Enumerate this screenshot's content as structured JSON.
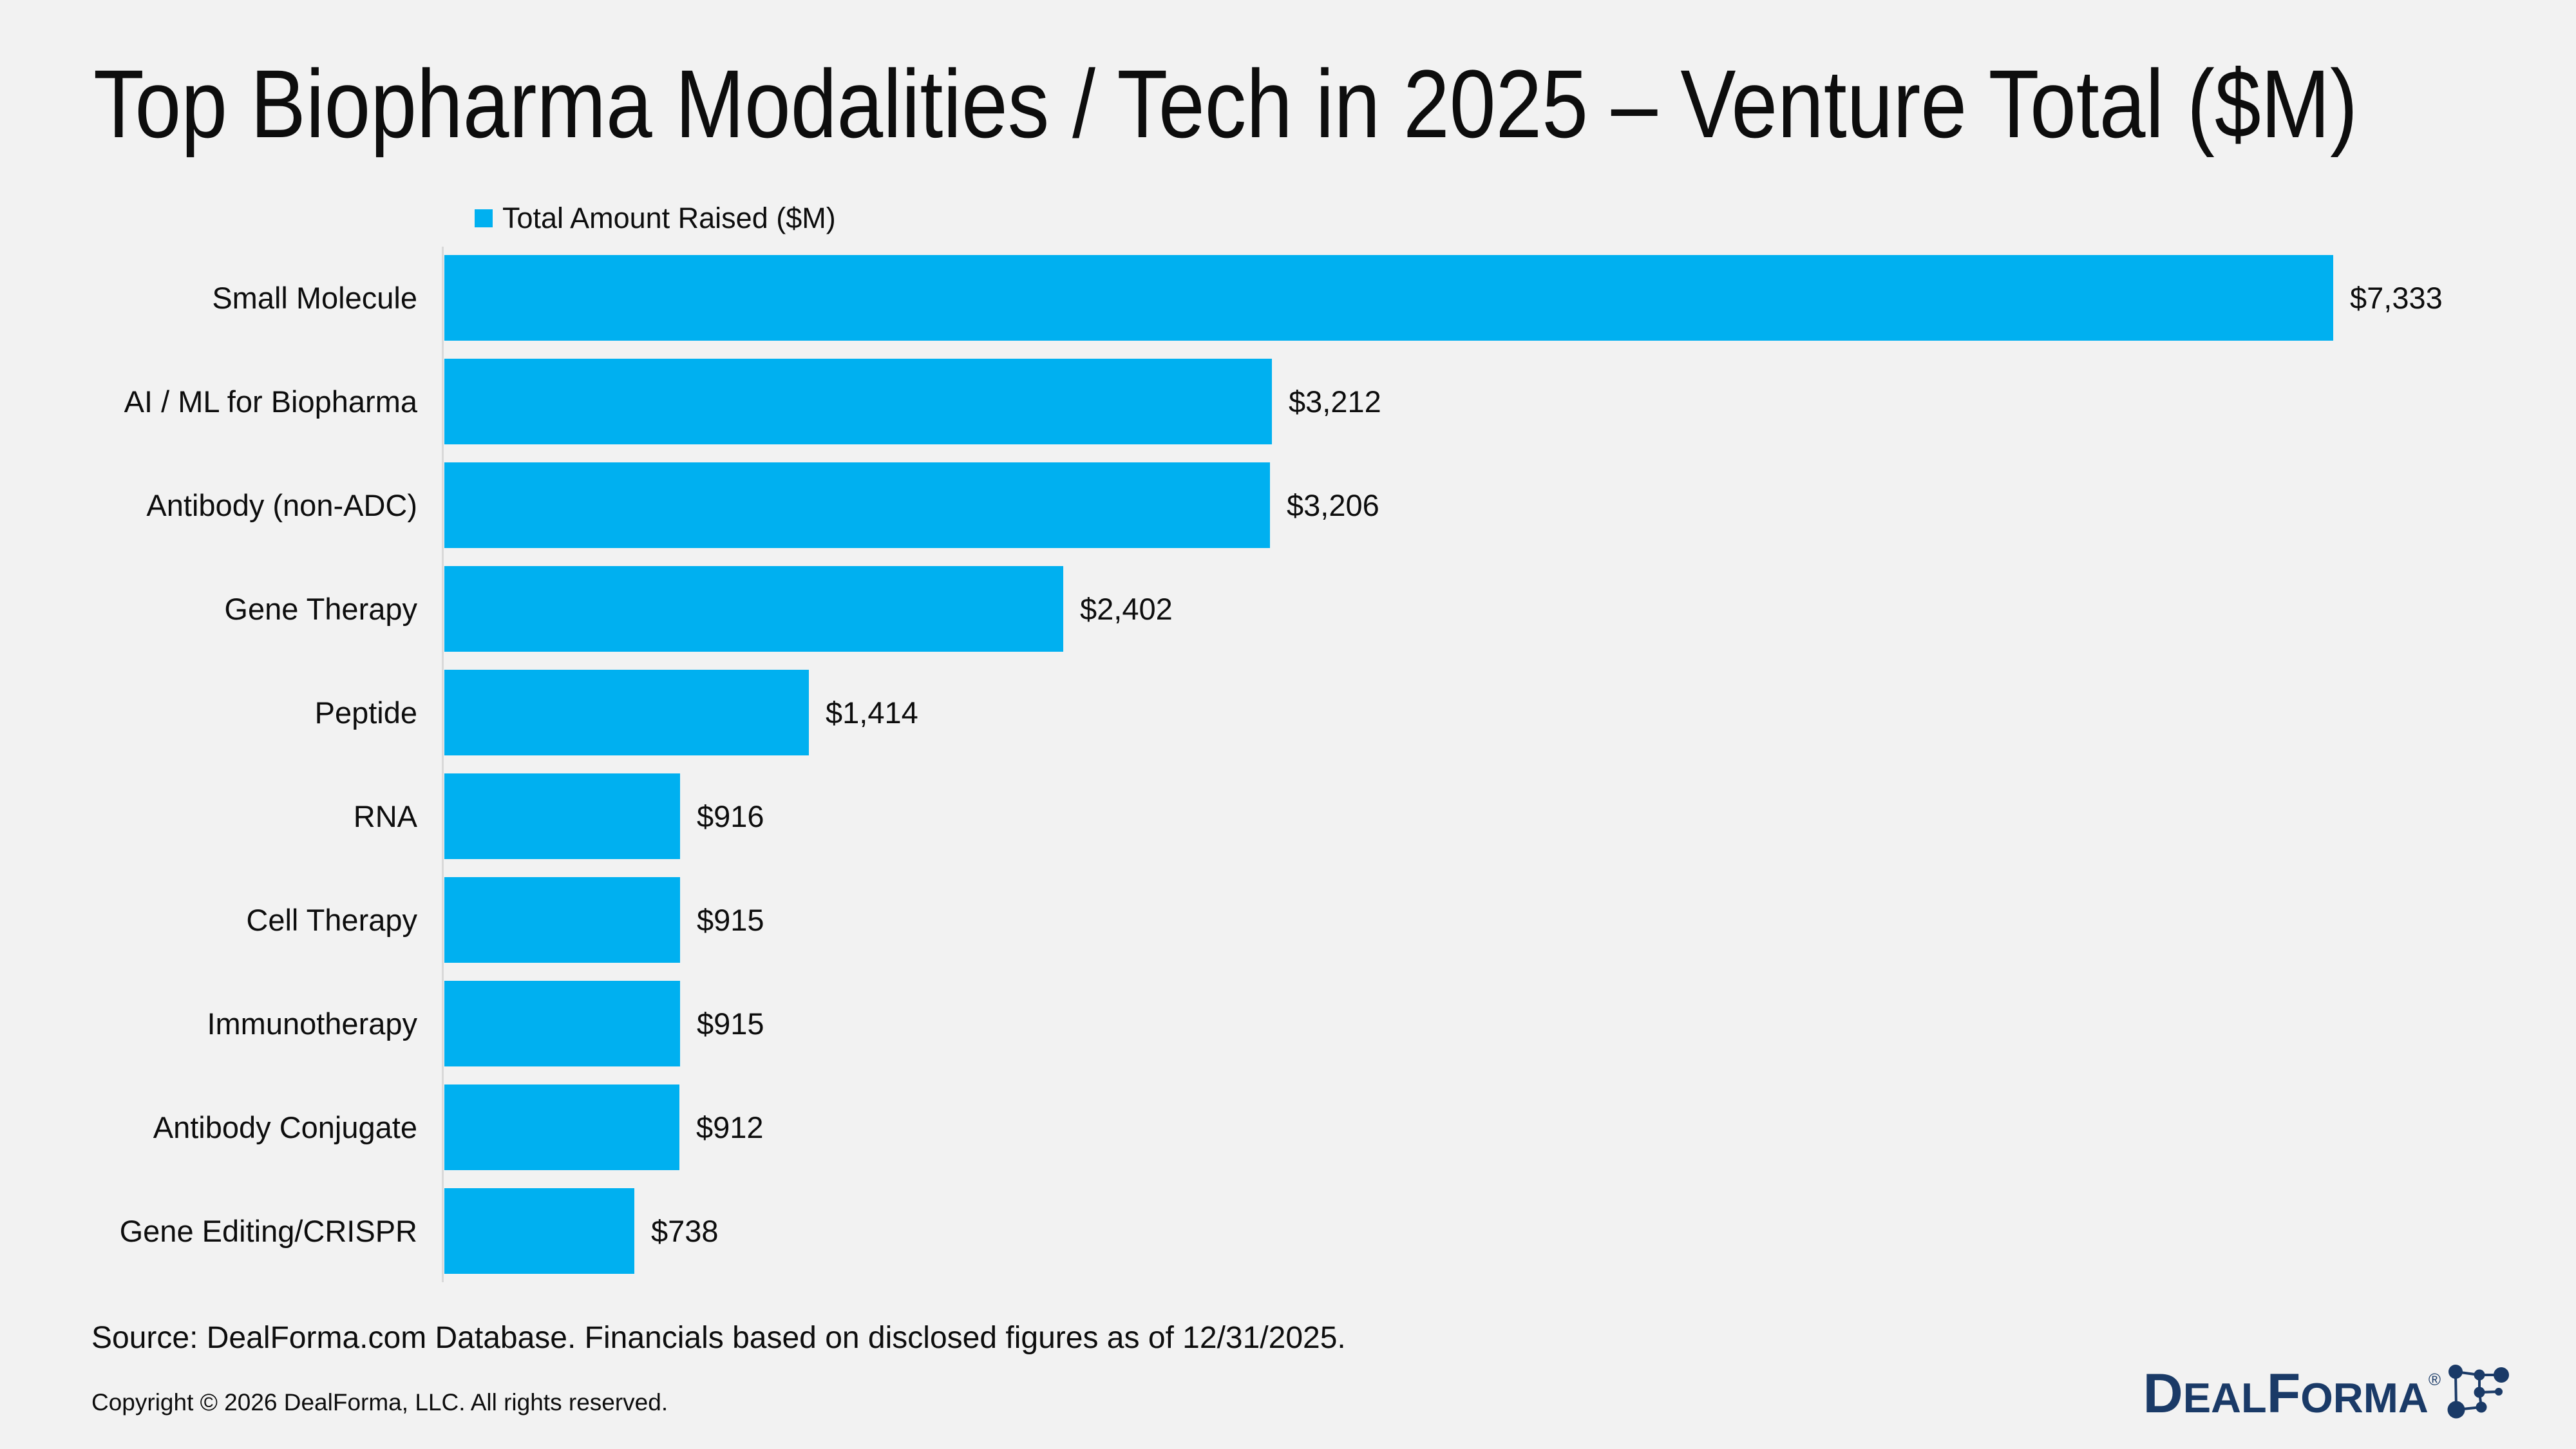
{
  "title": "Top Biopharma Modalities / Tech in 2025 – Venture Total ($M)",
  "legend": {
    "label": "Total Amount Raised ($M)"
  },
  "chart_data": {
    "type": "bar",
    "orientation": "horizontal",
    "title": "Top Biopharma Modalities / Tech in 2025 – Venture Total ($M)",
    "series_name": "Total Amount Raised ($M)",
    "categories": [
      "Small Molecule",
      "AI / ML for Biopharma",
      "Antibody (non-ADC)",
      "Gene Therapy",
      "Peptide",
      "RNA",
      "Cell Therapy",
      "Immunotherapy",
      "Antibody Conjugate",
      "Gene Editing/CRISPR"
    ],
    "values": [
      7333,
      3212,
      3206,
      2402,
      1414,
      916,
      915,
      915,
      912,
      738
    ],
    "value_labels": [
      "$7,333",
      "$3,212",
      "$3,206",
      "$2,402",
      "$1,414",
      "$916",
      "$915",
      "$915",
      "$912",
      "$738"
    ],
    "xlim": [
      0,
      7333
    ],
    "grid": false,
    "legend_position": "top-left",
    "bar_color": "#00b0f0"
  },
  "footer": {
    "source": "Source: DealForma.com Database. Financials based on disclosed figures as of 12/31/2025.",
    "copyright": "Copyright © 2026 DealForma, LLC. All rights reserved."
  },
  "logo": {
    "part1": "D",
    "part2": "EAL",
    "part3": "F",
    "part4": "ORMA",
    "registered_mark": "®"
  },
  "colors": {
    "background": "#f2f2f2",
    "bar": "#00b0f0",
    "axis_line": "#d9d9d9",
    "text": "#0d0d0d",
    "logo_navy": "#1a3a67"
  }
}
